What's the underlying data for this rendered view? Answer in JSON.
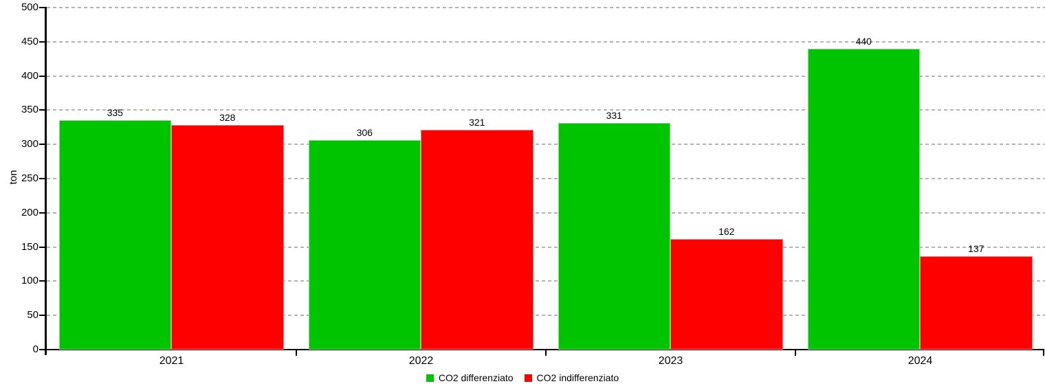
{
  "chart_data": {
    "type": "bar",
    "title": "",
    "categories": [
      "2021",
      "2022",
      "2023",
      "2024"
    ],
    "series": [
      {
        "name": "CO2 differenziato",
        "color": "#00c400",
        "values": [
          335,
          306,
          331,
          440
        ]
      },
      {
        "name": "CO2 indifferenziato",
        "color": "#ff0000",
        "values": [
          328,
          321,
          162,
          137
        ]
      }
    ],
    "xlabel": "",
    "ylabel": "ton",
    "ylim": [
      0,
      500
    ],
    "ytick_step": 50,
    "y_tick_labels": [
      "0",
      "50",
      "100",
      "150",
      "200",
      "250",
      "300",
      "350",
      "400",
      "450",
      "500"
    ],
    "bar_value_labels": [
      [
        335,
        306,
        331,
        440
      ],
      [
        328,
        321,
        162,
        137
      ]
    ],
    "grid": "horizontal-dashed",
    "grid_color": "#b3b3b3",
    "axis_color": "#000000",
    "text_color": "#000000",
    "legend_position": "bottom-center"
  }
}
